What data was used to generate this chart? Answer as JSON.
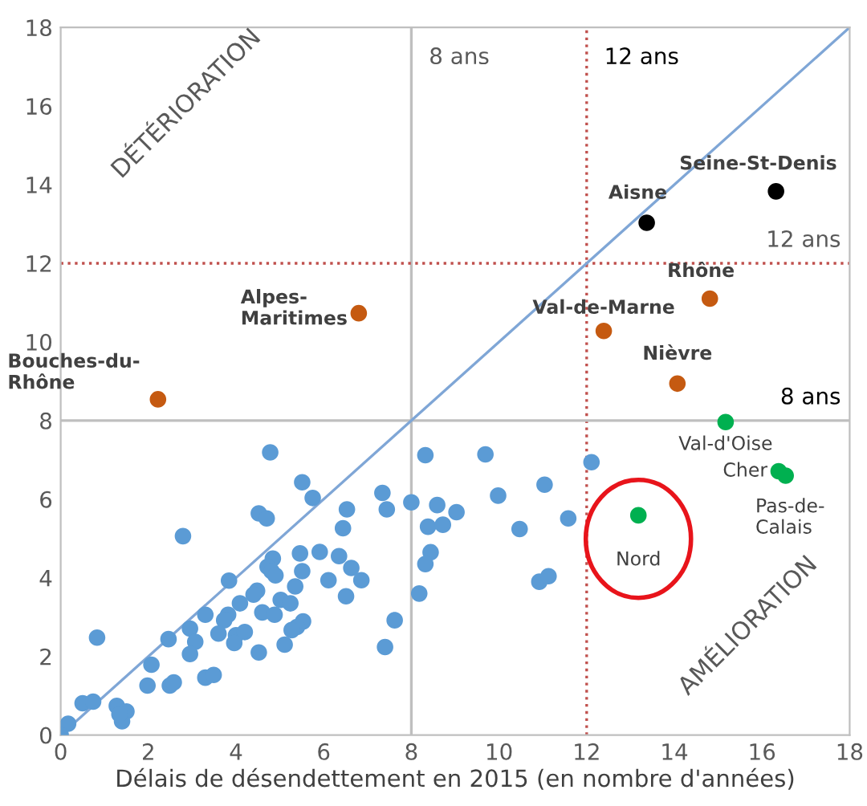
{
  "chart_data": {
    "type": "scatter",
    "xlabel": "Délais de désendettement en 2015 (en nombre d'années)",
    "xlim": [
      0,
      18
    ],
    "ylim": [
      0,
      18
    ],
    "xticks": [
      0,
      2,
      4,
      6,
      8,
      10,
      12,
      14,
      16,
      18
    ],
    "yticks": [
      0,
      2,
      4,
      6,
      8,
      10,
      12,
      14,
      16,
      18
    ],
    "grid": false,
    "legend": false,
    "marker": "circle",
    "series": [
      {
        "color": "#5b9bd5",
        "x": [
          4.78,
          5.51,
          5.75,
          4.52,
          4.7,
          2.79,
          7.34,
          7.44,
          8.0,
          6.53,
          6.44,
          4.84,
          4.72,
          4.81,
          4.9,
          5.46,
          5.91,
          6.35,
          6.63,
          6.86,
          6.11,
          6.51,
          5.51,
          5.35,
          3.84,
          4.48,
          4.4,
          4.09,
          5.02,
          5.24,
          4.6,
          4.88,
          3.82,
          3.73,
          3.6,
          3.3,
          2.95,
          3.07,
          2.95,
          2.46,
          4.0,
          4.2,
          3.96,
          4.52,
          5.11,
          5.53,
          5.39,
          5.27,
          7.62,
          7.4,
          0.83,
          2.07,
          1.98,
          2.49,
          2.58,
          3.3,
          3.49,
          0.5,
          0.74,
          1.28,
          1.5,
          1.4,
          1.34,
          0.17,
          0.0,
          8.32,
          9.69,
          12.11,
          8.59,
          9.03,
          8.38,
          8.72,
          9.98,
          11.04,
          11.58,
          10.47,
          8.44,
          8.32,
          8.18,
          10.92,
          11.13
        ],
        "values": [
          7.19,
          6.43,
          6.03,
          5.64,
          5.51,
          5.06,
          6.16,
          5.74,
          5.92,
          5.74,
          5.26,
          4.49,
          4.28,
          4.17,
          4.06,
          4.62,
          4.66,
          4.55,
          4.25,
          3.94,
          3.94,
          3.53,
          4.17,
          3.78,
          3.93,
          3.67,
          3.57,
          3.35,
          3.44,
          3.35,
          3.12,
          3.06,
          3.06,
          2.92,
          2.58,
          3.06,
          2.71,
          2.37,
          2.06,
          2.44,
          2.54,
          2.62,
          2.34,
          2.1,
          2.3,
          2.89,
          2.75,
          2.67,
          2.92,
          2.24,
          2.48,
          1.79,
          1.26,
          1.26,
          1.34,
          1.46,
          1.53,
          0.81,
          0.85,
          0.74,
          0.6,
          0.35,
          0.53,
          0.29,
          0.0,
          7.12,
          7.14,
          6.94,
          5.85,
          5.67,
          5.3,
          5.35,
          6.09,
          6.37,
          5.51,
          5.24,
          4.65,
          4.35,
          3.6,
          3.9,
          4.04
        ]
      },
      {
        "color": "#c55a11",
        "x": [
          14.81,
          12.39,
          14.07,
          6.8,
          2.22
        ],
        "values": [
          11.1,
          10.28,
          8.94,
          10.73,
          8.54
        ]
      },
      {
        "color": "#000000",
        "x": [
          13.37,
          16.32
        ],
        "values": [
          13.03,
          13.83
        ]
      },
      {
        "color": "#00b050",
        "x": [
          15.17,
          16.38,
          16.54,
          13.18
        ],
        "values": [
          7.96,
          6.71,
          6.6,
          5.59
        ]
      },
      {
        "type": "line",
        "marker": "none",
        "color": "#7fa6d6",
        "x": [
          0,
          18
        ],
        "values": [
          0,
          18
        ]
      }
    ],
    "ref_lines": [
      {
        "axis": "x",
        "value": 8,
        "label": "8 ans",
        "color": "#bfbfbf",
        "line_style": "solid"
      },
      {
        "axis": "x",
        "value": 12,
        "label": "12 ans",
        "color": "#c0504d",
        "line_style": "dotted"
      },
      {
        "axis": "y",
        "value": 12,
        "label": "12 ans",
        "color": "#c0504d",
        "line_style": "dotted"
      },
      {
        "axis": "y",
        "value": 8,
        "label": "8 ans",
        "color": "#bfbfbf",
        "line_style": "solid"
      }
    ],
    "annotations": [
      "DÉTÉRIORATION",
      "AMÉLIORATION",
      {
        "text": "Aisne",
        "x": 13.37,
        "y": 13.03
      },
      {
        "text": "Seine-St-Denis",
        "x": 16.32,
        "y": 13.83
      },
      {
        "text": "Rhône",
        "x": 14.81,
        "y": 11.1
      },
      {
        "text": "Val-de-Marne",
        "x": 12.39,
        "y": 10.28
      },
      {
        "text": "Nièvre",
        "x": 14.07,
        "y": 8.94
      },
      {
        "text": "Alpes-\nMaritimes",
        "x": 6.8,
        "y": 10.73
      },
      {
        "text": "Bouches-du-\nRhône",
        "x": 2.22,
        "y": 8.54
      },
      {
        "text": "Val-d'Oise",
        "x": 15.17,
        "y": 7.96
      },
      {
        "text": "Cher",
        "x": 16.38,
        "y": 6.71
      },
      {
        "text": "Pas-de-\nCalais",
        "x": 16.54,
        "y": 6.6
      },
      {
        "text": "Nord",
        "x": 13.18,
        "y": 5.59
      }
    ]
  }
}
